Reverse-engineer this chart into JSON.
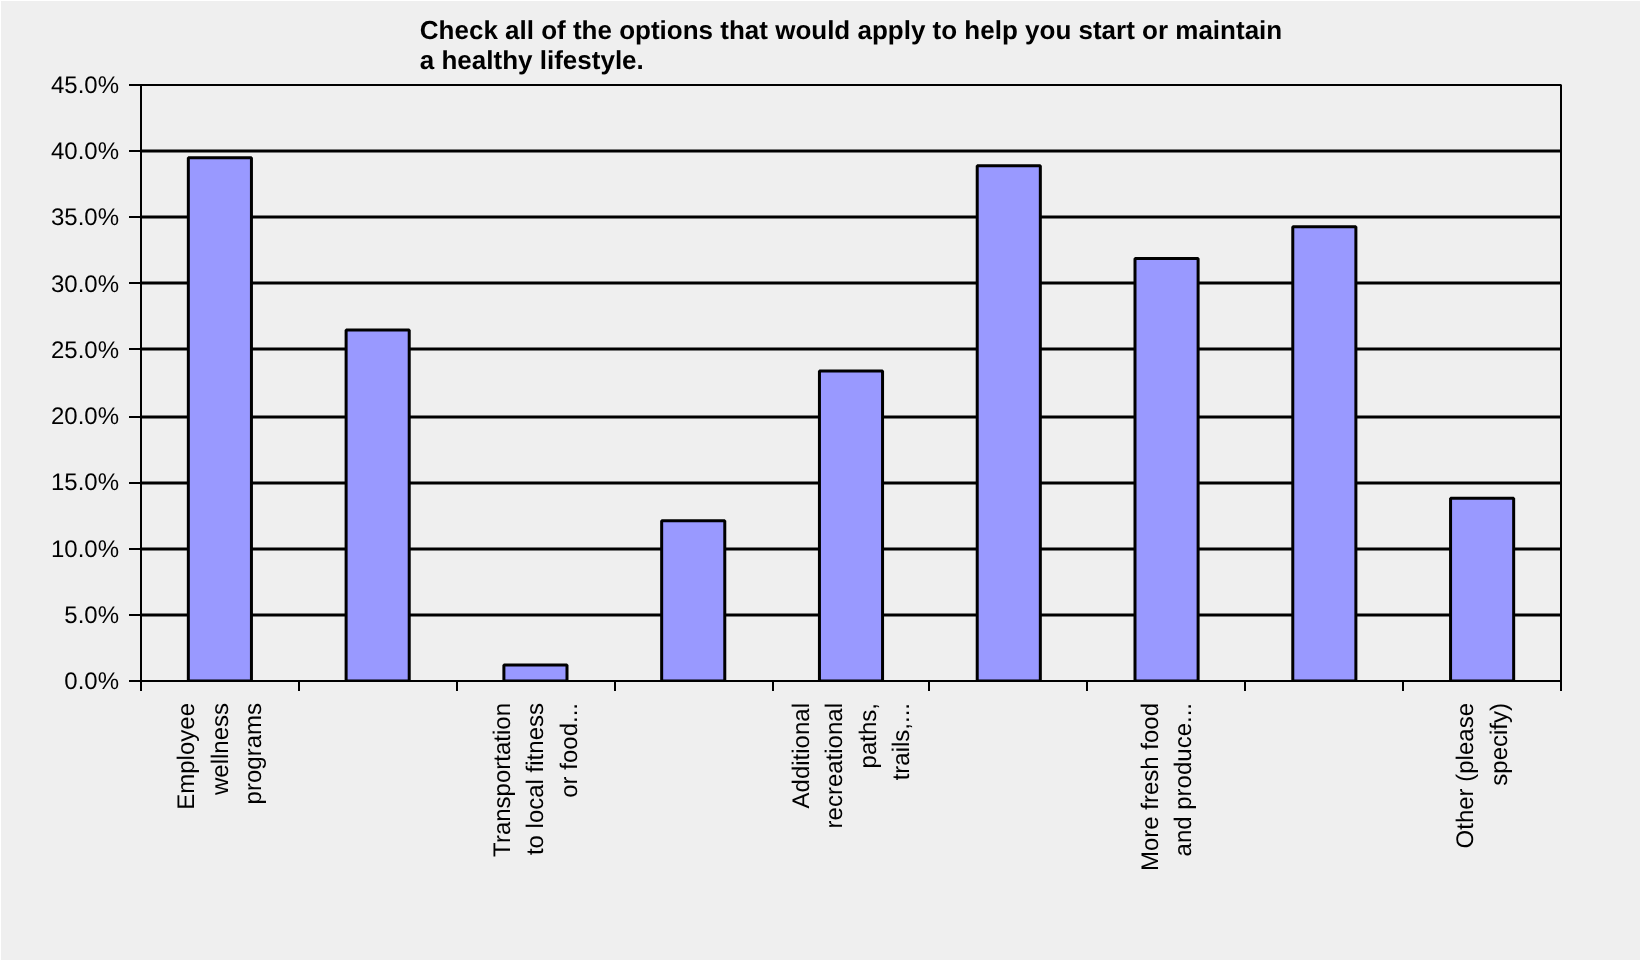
{
  "chart_data": {
    "type": "bar",
    "title": "Check all of the options that would apply to help you start or maintain a healthy lifestyle.",
    "categories": [
      "Employee wellness programs",
      null,
      "Transportation to local fitness or food...",
      null,
      "Additional recreational paths, trails,...",
      null,
      "More fresh food and produce...",
      null,
      "Other (please specify)"
    ],
    "values": [
      39.5,
      26.5,
      1.2,
      12.1,
      23.4,
      38.9,
      31.9,
      34.3,
      13.8
    ],
    "color": "#9999ff",
    "ylim": [
      0,
      45
    ],
    "yticks": [
      {
        "value": 0,
        "label": "0.0%"
      },
      {
        "value": 5,
        "label": "5.0%"
      },
      {
        "value": 10,
        "label": "10.0%"
      },
      {
        "value": 15,
        "label": "15.0%"
      },
      {
        "value": 20,
        "label": "20.0%"
      },
      {
        "value": 25,
        "label": "25.0%"
      },
      {
        "value": 30,
        "label": "30.0%"
      },
      {
        "value": 35,
        "label": "35.0%"
      },
      {
        "value": 40,
        "label": "40.0%"
      },
      {
        "value": 45,
        "label": "45.0%"
      }
    ],
    "grid": "y"
  }
}
